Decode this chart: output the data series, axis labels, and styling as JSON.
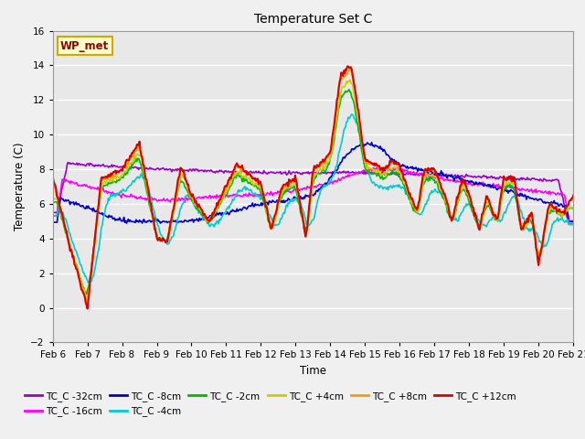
{
  "title": "Temperature Set C",
  "xlabel": "Time",
  "ylabel": "Temperature (C)",
  "ylim": [
    -2,
    16
  ],
  "yticks": [
    -2,
    0,
    2,
    4,
    6,
    8,
    10,
    12,
    14,
    16
  ],
  "background_color": "#f0f0f0",
  "plot_bg_color": "#e8e8e8",
  "grid_color": "#ffffff",
  "annotation_text": "WP_met",
  "annotation_bg": "#ffffcc",
  "annotation_border": "#ccaa00",
  "series": [
    {
      "label": "TC_C -32cm",
      "color": "#9900cc",
      "lw": 1.2
    },
    {
      "label": "TC_C -16cm",
      "color": "#ff00ff",
      "lw": 1.2
    },
    {
      "label": "TC_C -8cm",
      "color": "#0000cc",
      "lw": 1.2
    },
    {
      "label": "TC_C -4cm",
      "color": "#00cccc",
      "lw": 1.2
    },
    {
      "label": "TC_C -2cm",
      "color": "#00bb00",
      "lw": 1.2
    },
    {
      "label": "TC_C +4cm",
      "color": "#cccc00",
      "lw": 1.2
    },
    {
      "label": "TC_C +8cm",
      "color": "#ff9900",
      "lw": 1.2
    },
    {
      "label": "TC_C +12cm",
      "color": "#dd0000",
      "lw": 1.5
    }
  ],
  "xtick_labels": [
    "Feb 6",
    "Feb 7",
    "Feb 8",
    "Feb 9",
    "Feb 10",
    "Feb 11",
    "Feb 12",
    "Feb 13",
    "Feb 14",
    "Feb 15",
    "Feb 16",
    "Feb 17",
    "Feb 18",
    "Feb 19",
    "Feb 20",
    "Feb 21"
  ],
  "days": 15
}
